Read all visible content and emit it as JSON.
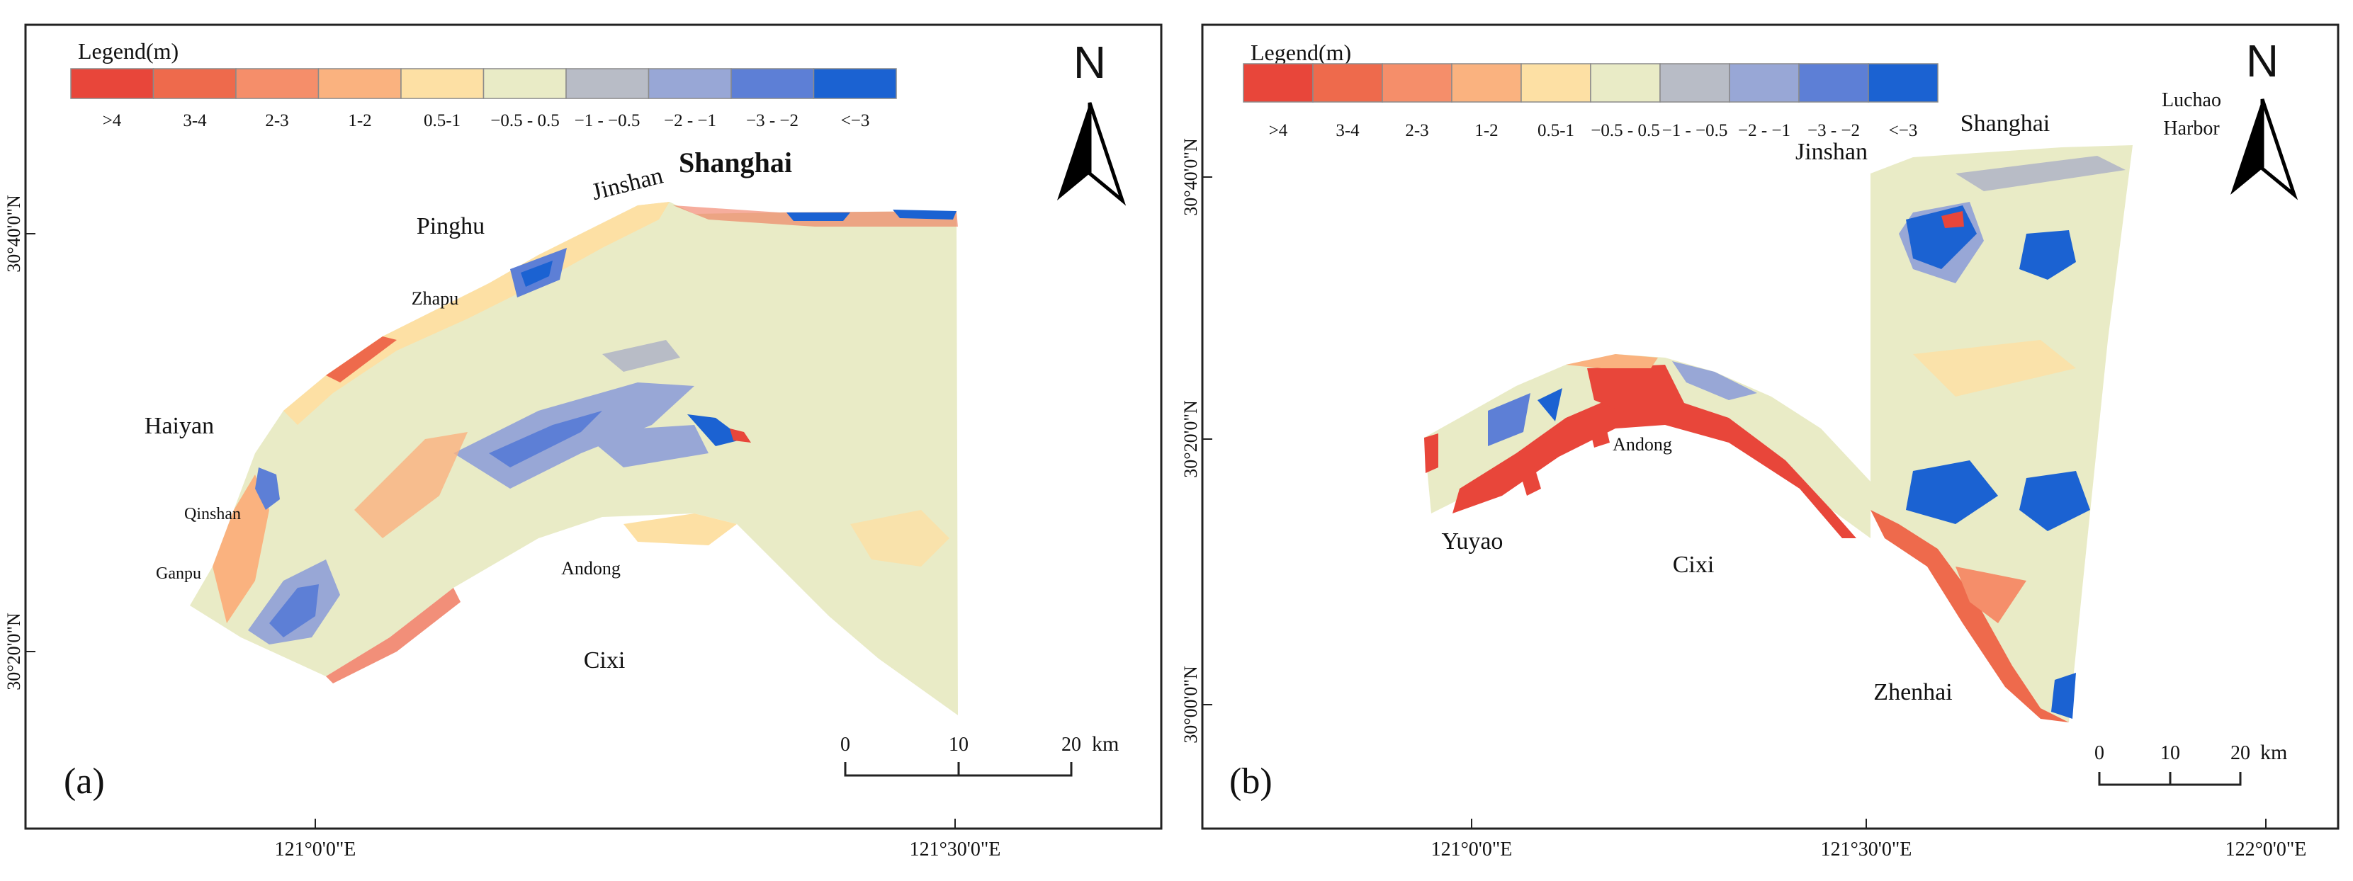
{
  "legend": {
    "title": "Legend(m)",
    "classes": [
      {
        "label": ">4",
        "color": "#e8463a"
      },
      {
        "label": "3-4",
        "color": "#ee6a4c"
      },
      {
        "label": "2-3",
        "color": "#f58e6a"
      },
      {
        "label": "1-2",
        "color": "#fab27f"
      },
      {
        "label": "0.5-1",
        "color": "#fde0a4"
      },
      {
        "label": "−0.5 - 0.5",
        "color": "#e9ebc6"
      },
      {
        "label": "−1 - −0.5",
        "color": "#b8bcc6"
      },
      {
        "label": "−2 - −1",
        "color": "#98a7d6"
      },
      {
        "label": "−3 - −2",
        "color": "#5d7fd6"
      },
      {
        "label": "<−3",
        "color": "#1b62d2"
      }
    ]
  },
  "north_label": "N",
  "panel_a": {
    "tag": "(a)",
    "y_ticks": [
      "30°40'0\"N",
      "30°20'0\"N"
    ],
    "x_ticks": [
      "121°0'0\"E",
      "121°30'0\"E"
    ],
    "places": {
      "shanghai": "Shanghai",
      "jinshan": "Jinshan",
      "pinghu": "Pinghu",
      "zhapu": "Zhapu",
      "haiyan": "Haiyan",
      "qinshan": "Qinshan",
      "ganpu": "Ganpu",
      "andong": "Andong",
      "cixi": "Cixi"
    },
    "scale": {
      "ticks": [
        "0",
        "10",
        "20"
      ],
      "unit": "km"
    }
  },
  "panel_b": {
    "tag": "(b)",
    "y_ticks": [
      "30°40'0\"N",
      "30°20'0\"N",
      "30°00'0\"N"
    ],
    "x_ticks": [
      "121°0'0\"E",
      "121°30'0\"E",
      "122°0'0\"E"
    ],
    "places": {
      "luchao_1": "Luchao",
      "luchao_2": "Harbor",
      "shanghai": "Shanghai",
      "jinshan": "Jinshan",
      "andong": "Andong",
      "yuyao": "Yuyao",
      "cixi": "Cixi",
      "zhenhai": "Zhenhai"
    },
    "scale": {
      "ticks": [
        "0",
        "10",
        "20"
      ],
      "unit": "km"
    }
  }
}
